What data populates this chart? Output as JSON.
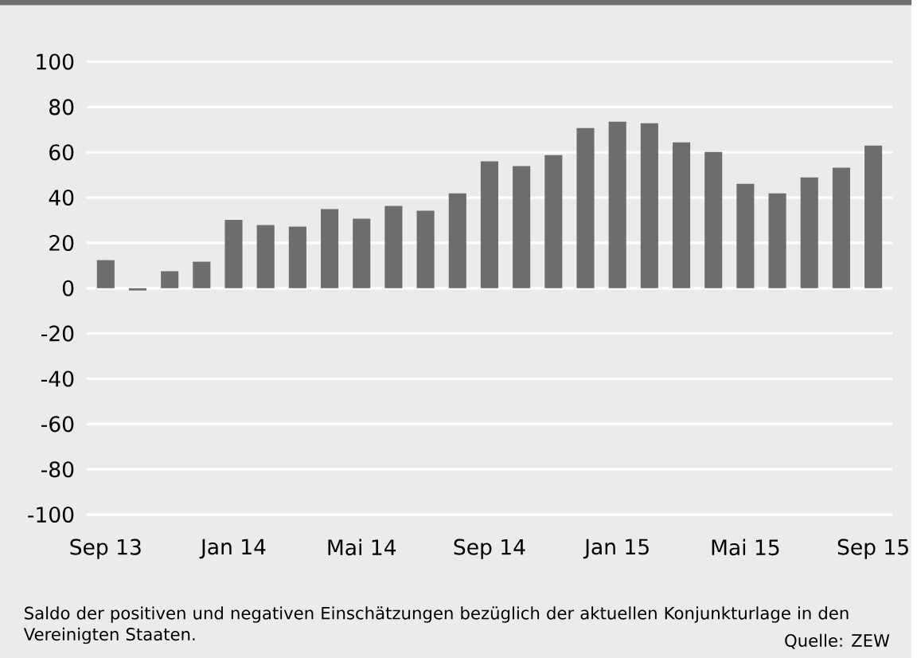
{
  "chart_data": {
    "type": "bar",
    "categories": [
      "Sep 13",
      null,
      null,
      null,
      "Jan 14",
      null,
      null,
      null,
      "Mai 14",
      null,
      null,
      null,
      "Sep 14",
      null,
      null,
      null,
      "Jan 15",
      null,
      null,
      null,
      "Mai 15",
      null,
      null,
      null,
      "Sep 15"
    ],
    "values": [
      12.4,
      -1,
      7.5,
      11.7,
      30.2,
      27.9,
      27.2,
      34.9,
      30.7,
      36.3,
      34.2,
      41.9,
      56,
      53.9,
      58.8,
      70.7,
      73.5,
      72.8,
      64.4,
      60.2,
      46.1,
      41.9,
      48.9,
      53.2,
      63
    ],
    "color": "#6d6d6d",
    "ylim": [
      -100,
      100
    ],
    "yticks": [
      -100,
      -80,
      -60,
      -40,
      -20,
      0,
      20,
      40,
      60,
      80,
      100
    ],
    "grid": "y",
    "annotations": [
      "Saldo der positiven und negativen Einschätzungen bezüglich der aktuellen Konjunkturlage in den Vereinigten Staaten.",
      "Quelle: ZEW"
    ]
  }
}
